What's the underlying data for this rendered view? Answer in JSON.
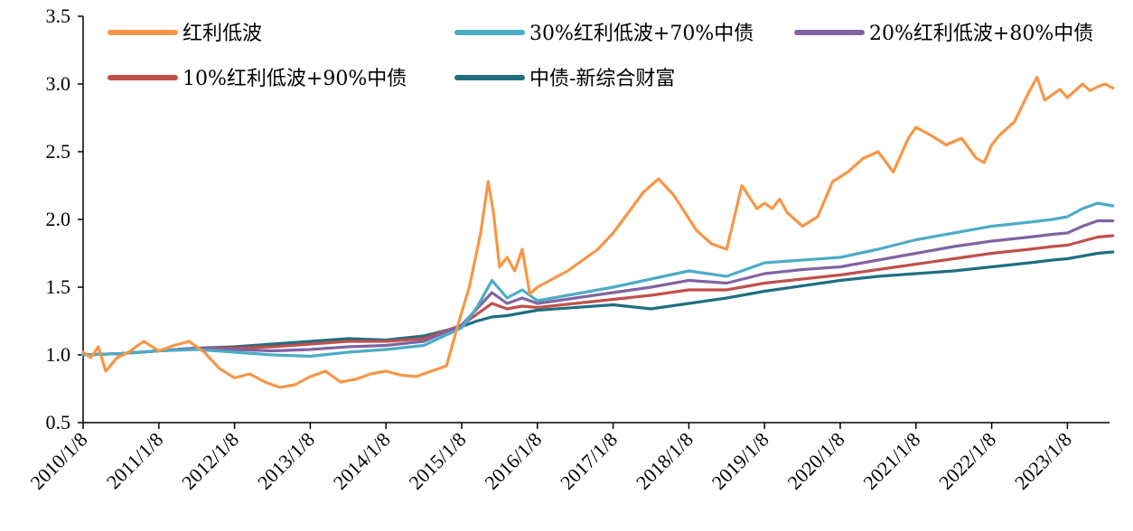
{
  "chart_data": {
    "type": "line",
    "title": "",
    "xlabel": "",
    "ylabel": "",
    "ylim": [
      0.5,
      3.5
    ],
    "yticks": [
      "0.5",
      "1.0",
      "1.5",
      "2.0",
      "2.5",
      "3.0",
      "3.5"
    ],
    "ytick_values": [
      0.5,
      1.0,
      1.5,
      2.0,
      2.5,
      3.0,
      3.5
    ],
    "xticks": [
      "2010/1/8",
      "2011/1/8",
      "2012/1/8",
      "2013/1/8",
      "2014/1/8",
      "2015/1/8",
      "2016/1/8",
      "2017/1/8",
      "2018/1/8",
      "2019/1/8",
      "2020/1/8",
      "2021/1/8",
      "2022/1/8",
      "2023/1/8"
    ],
    "xtick_years": [
      2010,
      2011,
      2012,
      2013,
      2014,
      2015,
      2016,
      2017,
      2018,
      2019,
      2020,
      2021,
      2022,
      2023
    ],
    "xlim": [
      2010.0,
      2023.6
    ],
    "legend_position": "top",
    "series": [
      {
        "name": "红利低波",
        "color": "#F79646",
        "x": [
          2010.0,
          2010.1,
          2010.2,
          2010.3,
          2010.45,
          2010.6,
          2010.8,
          2011.0,
          2011.2,
          2011.4,
          2011.6,
          2011.8,
          2012.0,
          2012.2,
          2012.4,
          2012.6,
          2012.8,
          2013.0,
          2013.2,
          2013.4,
          2013.6,
          2013.8,
          2014.0,
          2014.2,
          2014.4,
          2014.6,
          2014.8,
          2014.95,
          2015.1,
          2015.25,
          2015.35,
          2015.42,
          2015.5,
          2015.6,
          2015.7,
          2015.8,
          2015.9,
          2016.0,
          2016.2,
          2016.4,
          2016.6,
          2016.8,
          2017.0,
          2017.2,
          2017.4,
          2017.6,
          2017.8,
          2017.95,
          2018.1,
          2018.3,
          2018.5,
          2018.7,
          2018.9,
          2019.0,
          2019.1,
          2019.2,
          2019.3,
          2019.5,
          2019.7,
          2019.9,
          2020.1,
          2020.3,
          2020.5,
          2020.7,
          2020.9,
          2021.0,
          2021.2,
          2021.4,
          2021.6,
          2021.8,
          2021.9,
          2022.0,
          2022.1,
          2022.3,
          2022.5,
          2022.6,
          2022.7,
          2022.8,
          2022.9,
          2023.0,
          2023.1,
          2023.2,
          2023.3,
          2023.4,
          2023.5,
          2023.6
        ],
        "values": [
          1.02,
          0.98,
          1.06,
          0.88,
          0.98,
          1.02,
          1.1,
          1.03,
          1.07,
          1.1,
          1.02,
          0.9,
          0.83,
          0.86,
          0.8,
          0.76,
          0.78,
          0.84,
          0.88,
          0.8,
          0.82,
          0.86,
          0.88,
          0.85,
          0.84,
          0.88,
          0.92,
          1.22,
          1.5,
          1.9,
          2.28,
          2.05,
          1.65,
          1.72,
          1.62,
          1.78,
          1.45,
          1.5,
          1.56,
          1.62,
          1.7,
          1.78,
          1.9,
          2.05,
          2.2,
          2.3,
          2.18,
          2.05,
          1.92,
          1.82,
          1.78,
          2.25,
          2.08,
          2.12,
          2.08,
          2.15,
          2.05,
          1.95,
          2.02,
          2.28,
          2.35,
          2.45,
          2.5,
          2.35,
          2.6,
          2.68,
          2.62,
          2.55,
          2.6,
          2.45,
          2.42,
          2.55,
          2.62,
          2.72,
          2.95,
          3.05,
          2.88,
          2.92,
          2.96,
          2.9,
          2.95,
          3.0,
          2.95,
          2.98,
          3.0,
          2.97
        ]
      },
      {
        "name": "30%红利低波+70%中债",
        "color": "#4BACC6",
        "x": [
          2010.0,
          2010.5,
          2011.0,
          2011.5,
          2012.0,
          2012.5,
          2013.0,
          2013.5,
          2014.0,
          2014.5,
          2015.0,
          2015.2,
          2015.4,
          2015.6,
          2015.8,
          2016.0,
          2016.5,
          2017.0,
          2017.5,
          2018.0,
          2018.5,
          2019.0,
          2019.5,
          2020.0,
          2020.5,
          2021.0,
          2021.5,
          2022.0,
          2022.5,
          2022.8,
          2023.0,
          2023.2,
          2023.4,
          2023.6
        ],
        "values": [
          1.0,
          1.01,
          1.03,
          1.04,
          1.02,
          1.0,
          0.99,
          1.02,
          1.04,
          1.07,
          1.2,
          1.35,
          1.55,
          1.42,
          1.48,
          1.4,
          1.45,
          1.5,
          1.56,
          1.62,
          1.58,
          1.68,
          1.7,
          1.72,
          1.78,
          1.85,
          1.9,
          1.95,
          1.98,
          2.0,
          2.02,
          2.08,
          2.12,
          2.1
        ]
      },
      {
        "name": "20%红利低波+80%中债",
        "color": "#8064A2",
        "x": [
          2010.0,
          2010.5,
          2011.0,
          2011.5,
          2012.0,
          2012.5,
          2013.0,
          2013.5,
          2014.0,
          2014.5,
          2015.0,
          2015.2,
          2015.4,
          2015.6,
          2015.8,
          2016.0,
          2016.5,
          2017.0,
          2017.5,
          2018.0,
          2018.5,
          2019.0,
          2019.5,
          2020.0,
          2020.5,
          2021.0,
          2021.5,
          2022.0,
          2022.5,
          2022.8,
          2023.0,
          2023.2,
          2023.4,
          2023.6
        ],
        "values": [
          1.0,
          1.01,
          1.03,
          1.05,
          1.04,
          1.03,
          1.04,
          1.06,
          1.07,
          1.1,
          1.22,
          1.34,
          1.46,
          1.38,
          1.42,
          1.38,
          1.42,
          1.46,
          1.5,
          1.55,
          1.53,
          1.6,
          1.63,
          1.65,
          1.7,
          1.75,
          1.8,
          1.84,
          1.87,
          1.89,
          1.9,
          1.95,
          1.99,
          1.99
        ]
      },
      {
        "name": "10%红利低波+90%中债",
        "color": "#C0504D",
        "x": [
          2010.0,
          2010.5,
          2011.0,
          2011.5,
          2012.0,
          2012.5,
          2013.0,
          2013.5,
          2014.0,
          2014.5,
          2015.0,
          2015.2,
          2015.4,
          2015.6,
          2015.8,
          2016.0,
          2016.5,
          2017.0,
          2017.5,
          2018.0,
          2018.5,
          2019.0,
          2019.5,
          2020.0,
          2020.5,
          2021.0,
          2021.5,
          2022.0,
          2022.5,
          2022.8,
          2023.0,
          2023.2,
          2023.4,
          2023.6
        ],
        "values": [
          1.0,
          1.01,
          1.03,
          1.05,
          1.05,
          1.06,
          1.08,
          1.1,
          1.1,
          1.12,
          1.22,
          1.3,
          1.38,
          1.34,
          1.36,
          1.35,
          1.38,
          1.41,
          1.44,
          1.48,
          1.48,
          1.53,
          1.56,
          1.59,
          1.63,
          1.67,
          1.71,
          1.75,
          1.78,
          1.8,
          1.81,
          1.84,
          1.87,
          1.88
        ]
      },
      {
        "name": "中债-新综合财富",
        "color": "#1F6F7F",
        "x": [
          2010.0,
          2010.5,
          2011.0,
          2011.5,
          2012.0,
          2012.5,
          2013.0,
          2013.5,
          2014.0,
          2014.5,
          2015.0,
          2015.2,
          2015.4,
          2015.6,
          2015.8,
          2016.0,
          2016.5,
          2017.0,
          2017.5,
          2018.0,
          2018.5,
          2019.0,
          2019.5,
          2020.0,
          2020.5,
          2021.0,
          2021.5,
          2022.0,
          2022.5,
          2022.8,
          2023.0,
          2023.2,
          2023.4,
          2023.6
        ],
        "values": [
          1.0,
          1.01,
          1.03,
          1.05,
          1.06,
          1.08,
          1.1,
          1.12,
          1.11,
          1.14,
          1.21,
          1.25,
          1.28,
          1.29,
          1.31,
          1.33,
          1.35,
          1.37,
          1.34,
          1.38,
          1.42,
          1.47,
          1.51,
          1.55,
          1.58,
          1.6,
          1.62,
          1.65,
          1.68,
          1.7,
          1.71,
          1.73,
          1.75,
          1.76
        ]
      }
    ]
  }
}
